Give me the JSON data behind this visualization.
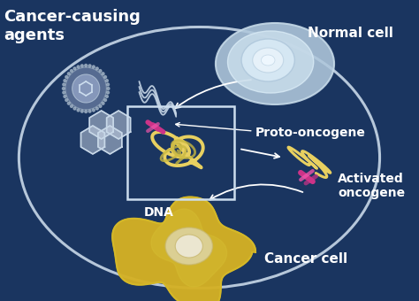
{
  "bg_color": "#1a3560",
  "labels": {
    "cancer_causing": "Cancer-causing\nagents",
    "normal_cell": "Normal cell",
    "proto_oncogene": "Proto-oncogene",
    "dna": "DNA",
    "activated_oncogene": "Activated\noncogene",
    "cancer_cell": "Cancer cell"
  },
  "text_color": "#ffffff",
  "ellipse_stroke": "#c8d8e8",
  "dna_color": "#e8d060",
  "oncogene_highlight": "#cc3388",
  "normal_cell_outer": "#b8ccdd",
  "normal_cell_inner": "#d8eaf5",
  "cancer_cell_color": "#d4aa20",
  "virus_color": "#8899bb",
  "hex_color": "#c8d4e4",
  "font_size_title": 13,
  "font_size_label": 11,
  "font_size_small": 10
}
